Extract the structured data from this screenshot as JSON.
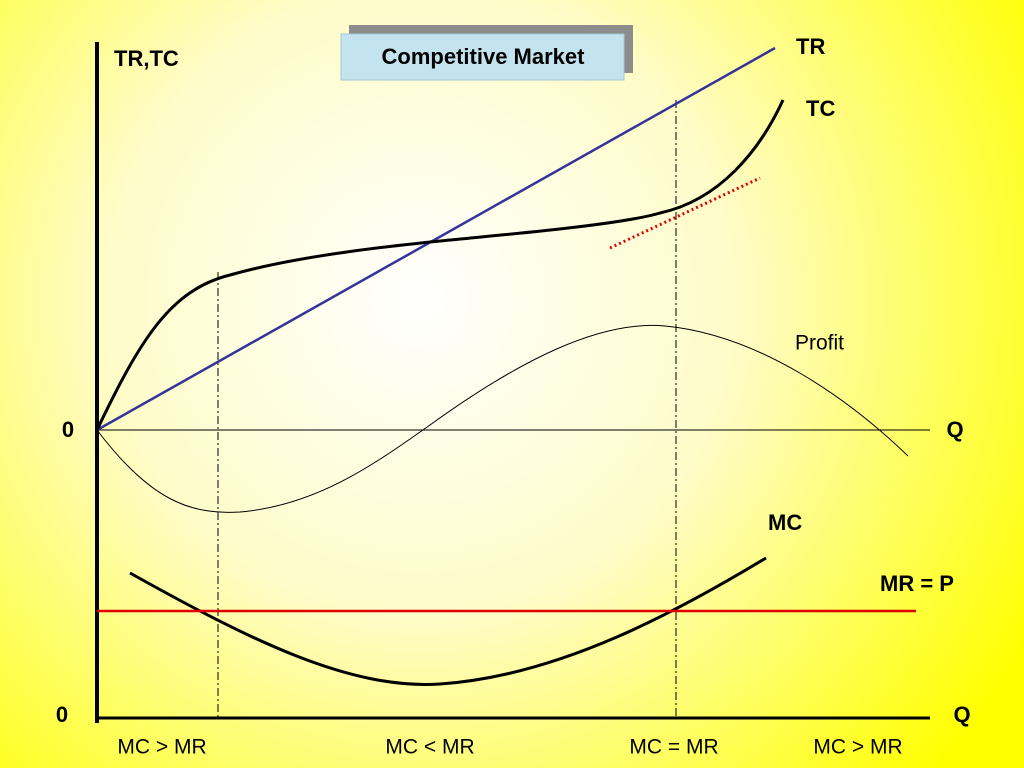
{
  "title": "Competitive Market",
  "top_graph": {
    "y_axis_label": "TR,TC",
    "origin_label": "0",
    "x_axis_label": "Q",
    "curves": [
      {
        "label": "TR"
      },
      {
        "label": "TC"
      },
      {
        "label": "Profit"
      }
    ]
  },
  "bottom_graph": {
    "origin_label": "0",
    "x_axis_label": "Q",
    "curves": [
      {
        "label": "MC"
      },
      {
        "label": "MR = P"
      }
    ]
  },
  "regions": [
    "MC > MR",
    "MC < MR",
    "MC = MR",
    "MC > MR"
  ]
}
